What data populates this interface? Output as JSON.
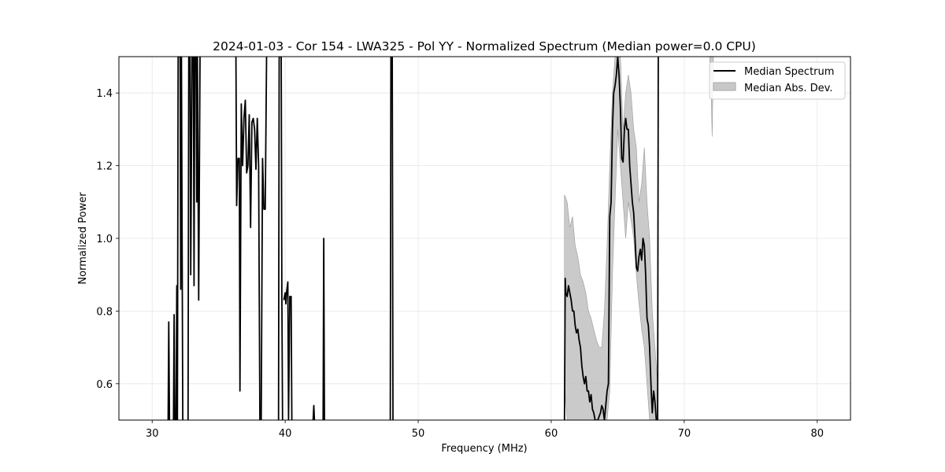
{
  "chart_data": {
    "type": "line",
    "title": "2024-01-03 - Cor 154 - LWA325 - Pol YY - Normalized Spectrum (Median power=0.0 CPU)",
    "xlabel": "Frequency (MHz)",
    "ylabel": "Normalized Power",
    "xlim": [
      27.5,
      82.5
    ],
    "ylim": [
      0.5,
      1.5
    ],
    "xticks": [
      30,
      40,
      50,
      60,
      70,
      80
    ],
    "yticks": [
      0.6,
      0.8,
      1.0,
      1.2,
      1.4
    ],
    "grid": true,
    "legend_position": "top-right",
    "series": [
      {
        "name": "Median Spectrum",
        "kind": "line",
        "color": "#000000",
        "segments": [
          [
            [
              31.2,
              0.5
            ],
            [
              31.25,
              0.77
            ],
            [
              31.3,
              0.5
            ]
          ],
          [
            [
              31.6,
              0.5
            ],
            [
              31.65,
              0.79
            ],
            [
              31.7,
              0.5
            ],
            [
              31.8,
              0.5
            ],
            [
              31.85,
              0.87
            ],
            [
              31.9,
              0.5
            ],
            [
              31.95,
              1.5
            ],
            [
              32.1,
              1.5
            ],
            [
              32.15,
              0.86
            ],
            [
              32.2,
              1.5
            ],
            [
              32.3,
              0.5
            ]
          ],
          [
            [
              32.7,
              0.5
            ],
            [
              32.75,
              1.5
            ],
            [
              32.85,
              1.5
            ],
            [
              32.9,
              0.9
            ],
            [
              33.0,
              1.5
            ],
            [
              33.1,
              1.5
            ],
            [
              33.15,
              0.87
            ],
            [
              33.2,
              1.5
            ],
            [
              33.3,
              1.5
            ],
            [
              33.35,
              1.1
            ],
            [
              33.4,
              1.5
            ],
            [
              33.5,
              0.83
            ],
            [
              33.6,
              1.5
            ]
          ],
          [
            [
              36.3,
              1.5
            ],
            [
              36.35,
              1.09
            ],
            [
              36.45,
              1.22
            ],
            [
              36.55,
              1.22
            ],
            [
              36.6,
              0.58
            ],
            [
              36.7,
              1.37
            ],
            [
              36.8,
              1.2
            ],
            [
              36.9,
              1.33
            ],
            [
              37.0,
              1.38
            ],
            [
              37.1,
              1.18
            ],
            [
              37.2,
              1.2
            ],
            [
              37.3,
              1.34
            ],
            [
              37.4,
              1.03
            ],
            [
              37.5,
              1.32
            ],
            [
              37.6,
              1.33
            ],
            [
              37.7,
              1.3
            ],
            [
              37.8,
              1.19
            ],
            [
              37.9,
              1.33
            ],
            [
              38.0,
              1.2
            ],
            [
              38.1,
              0.5
            ],
            [
              38.2,
              0.5
            ],
            [
              38.3,
              1.22
            ],
            [
              38.4,
              1.08
            ],
            [
              38.5,
              1.08
            ],
            [
              38.6,
              1.5
            ]
          ],
          [
            [
              39.5,
              0.5
            ],
            [
              39.55,
              1.5
            ],
            [
              39.7,
              1.5
            ],
            [
              39.75,
              0.85
            ],
            [
              39.8,
              0.5
            ]
          ],
          [
            [
              39.9,
              0.83
            ],
            [
              40.0,
              0.85
            ],
            [
              40.05,
              0.82
            ],
            [
              40.1,
              0.85
            ],
            [
              40.2,
              0.88
            ],
            [
              40.25,
              0.5
            ],
            [
              40.35,
              0.84
            ],
            [
              40.45,
              0.84
            ],
            [
              40.5,
              0.5
            ]
          ],
          [
            [
              42.1,
              0.5
            ],
            [
              42.15,
              0.54
            ],
            [
              42.2,
              0.5
            ]
          ],
          [
            [
              42.85,
              0.5
            ],
            [
              42.9,
              1.0
            ],
            [
              42.95,
              0.5
            ]
          ],
          [
            [
              47.9,
              0.5
            ],
            [
              47.95,
              1.5
            ],
            [
              48.05,
              1.5
            ],
            [
              48.1,
              0.5
            ]
          ],
          [
            [
              61.0,
              0.5
            ],
            [
              61.05,
              0.89
            ],
            [
              61.1,
              0.85
            ],
            [
              61.2,
              0.84
            ],
            [
              61.3,
              0.87
            ],
            [
              61.4,
              0.85
            ],
            [
              61.5,
              0.83
            ],
            [
              61.6,
              0.8
            ],
            [
              61.7,
              0.8
            ],
            [
              61.8,
              0.76
            ],
            [
              61.9,
              0.74
            ],
            [
              62.0,
              0.75
            ],
            [
              62.1,
              0.72
            ],
            [
              62.2,
              0.7
            ],
            [
              62.3,
              0.65
            ],
            [
              62.4,
              0.62
            ],
            [
              62.5,
              0.6
            ],
            [
              62.6,
              0.62
            ],
            [
              62.7,
              0.58
            ],
            [
              62.8,
              0.58
            ],
            [
              62.9,
              0.55
            ],
            [
              63.0,
              0.57
            ],
            [
              63.1,
              0.53
            ],
            [
              63.2,
              0.52
            ],
            [
              63.3,
              0.5
            ],
            [
              63.5,
              0.5
            ],
            [
              63.7,
              0.52
            ],
            [
              63.8,
              0.54
            ],
            [
              63.9,
              0.53
            ],
            [
              64.0,
              0.5
            ],
            [
              64.2,
              0.58
            ],
            [
              64.3,
              0.6
            ],
            [
              64.4,
              1.06
            ],
            [
              64.5,
              1.1
            ],
            [
              64.6,
              1.3
            ],
            [
              64.7,
              1.4
            ],
            [
              64.8,
              1.42
            ],
            [
              64.9,
              1.45
            ],
            [
              65.0,
              1.5
            ],
            [
              65.1,
              1.45
            ],
            [
              65.2,
              1.36
            ],
            [
              65.3,
              1.22
            ],
            [
              65.4,
              1.21
            ],
            [
              65.5,
              1.3
            ],
            [
              65.6,
              1.33
            ],
            [
              65.7,
              1.3
            ],
            [
              65.8,
              1.3
            ],
            [
              65.9,
              1.2
            ],
            [
              66.0,
              1.15
            ],
            [
              66.1,
              1.1
            ],
            [
              66.2,
              1.07
            ],
            [
              66.3,
              1.0
            ],
            [
              66.4,
              0.92
            ],
            [
              66.5,
              0.91
            ],
            [
              66.6,
              0.95
            ],
            [
              66.7,
              0.97
            ],
            [
              66.8,
              0.94
            ],
            [
              66.9,
              1.0
            ],
            [
              67.0,
              0.98
            ],
            [
              67.1,
              0.9
            ],
            [
              67.2,
              0.78
            ],
            [
              67.3,
              0.76
            ],
            [
              67.4,
              0.7
            ],
            [
              67.5,
              0.6
            ],
            [
              67.6,
              0.52
            ],
            [
              67.7,
              0.58
            ],
            [
              67.8,
              0.55
            ],
            [
              67.9,
              0.5
            ]
          ],
          [
            [
              68.0,
              0.5
            ],
            [
              68.05,
              1.5
            ]
          ]
        ]
      },
      {
        "name": "Median Abs. Dev.",
        "kind": "band",
        "color": "#b8b8b8",
        "bands": [
          {
            "x": [
              61.0,
              61.2,
              61.4,
              61.6,
              61.8,
              62.0,
              62.2,
              62.4,
              62.6,
              62.8,
              63.0,
              63.2,
              63.4,
              63.6,
              63.8,
              64.0,
              64.2,
              64.4,
              64.6,
              64.8,
              65.0,
              65.2,
              65.4,
              65.6,
              65.8,
              66.0,
              66.2,
              66.4,
              66.6,
              66.8,
              67.0,
              67.2,
              67.4,
              67.6,
              67.8,
              68.0
            ],
            "upper": [
              1.12,
              1.1,
              1.03,
              1.06,
              0.98,
              0.95,
              0.9,
              0.88,
              0.85,
              0.8,
              0.78,
              0.75,
              0.72,
              0.7,
              0.7,
              0.8,
              0.98,
              1.2,
              1.4,
              1.5,
              1.5,
              1.5,
              1.3,
              1.4,
              1.45,
              1.4,
              1.3,
              1.25,
              1.1,
              1.15,
              1.25,
              1.1,
              1.0,
              0.8,
              0.7,
              0.6
            ],
            "lower": [
              0.6,
              0.5,
              0.5,
              0.5,
              0.5,
              0.5,
              0.5,
              0.5,
              0.5,
              0.5,
              0.5,
              0.5,
              0.5,
              0.5,
              0.5,
              0.5,
              0.5,
              0.58,
              0.9,
              1.1,
              1.3,
              1.2,
              1.1,
              1.0,
              1.1,
              1.05,
              1.0,
              0.9,
              0.82,
              0.75,
              0.7,
              0.6,
              0.5,
              0.5,
              0.5,
              0.5
            ]
          },
          {
            "x": [
              71.9,
              72.0,
              72.1,
              72.2
            ],
            "upper": [
              1.5,
              1.5,
              1.5,
              1.5
            ],
            "lower": [
              1.5,
              1.45,
              1.28,
              1.5
            ]
          }
        ]
      }
    ]
  }
}
